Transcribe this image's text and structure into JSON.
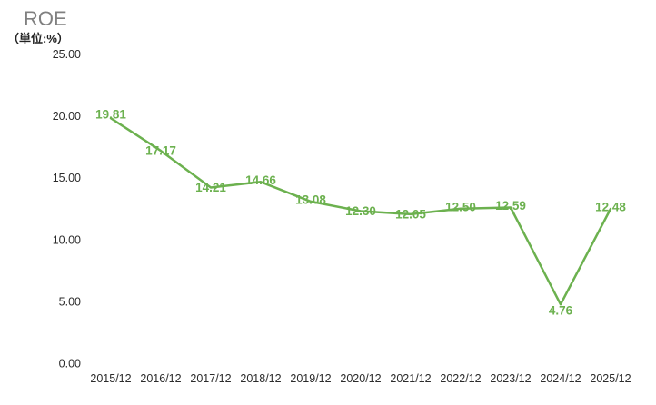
{
  "chart_data": {
    "type": "line",
    "title": "ROE",
    "unit_label": "（単位:%）",
    "categories": [
      "2015/12",
      "2016/12",
      "2017/12",
      "2018/12",
      "2019/12",
      "2020/12",
      "2021/12",
      "2022/12",
      "2023/12",
      "2024/12",
      "2025/12"
    ],
    "values": [
      19.81,
      17.17,
      14.21,
      14.66,
      13.08,
      12.3,
      12.05,
      12.5,
      12.59,
      4.76,
      12.48
    ],
    "value_labels": [
      "19.81",
      "17.17",
      "14.21",
      "14.66",
      "13.08",
      "12.30",
      "12.05",
      "12.50",
      "12.59",
      "4.76",
      "12.48"
    ],
    "ytick_labels": [
      "25.00",
      "20.00",
      "15.00",
      "10.00",
      "5.00",
      "0.00"
    ],
    "ylim": [
      0,
      25
    ],
    "xlabel": "",
    "ylabel": "",
    "grid": false,
    "legend": false,
    "line_color": "#6cb14f",
    "title_color": "#808080",
    "tick_color": "#2b2b2b",
    "label_dy": [
      -4,
      0,
      0,
      -2,
      -2,
      0,
      0,
      -2,
      -2,
      7,
      -2
    ]
  }
}
